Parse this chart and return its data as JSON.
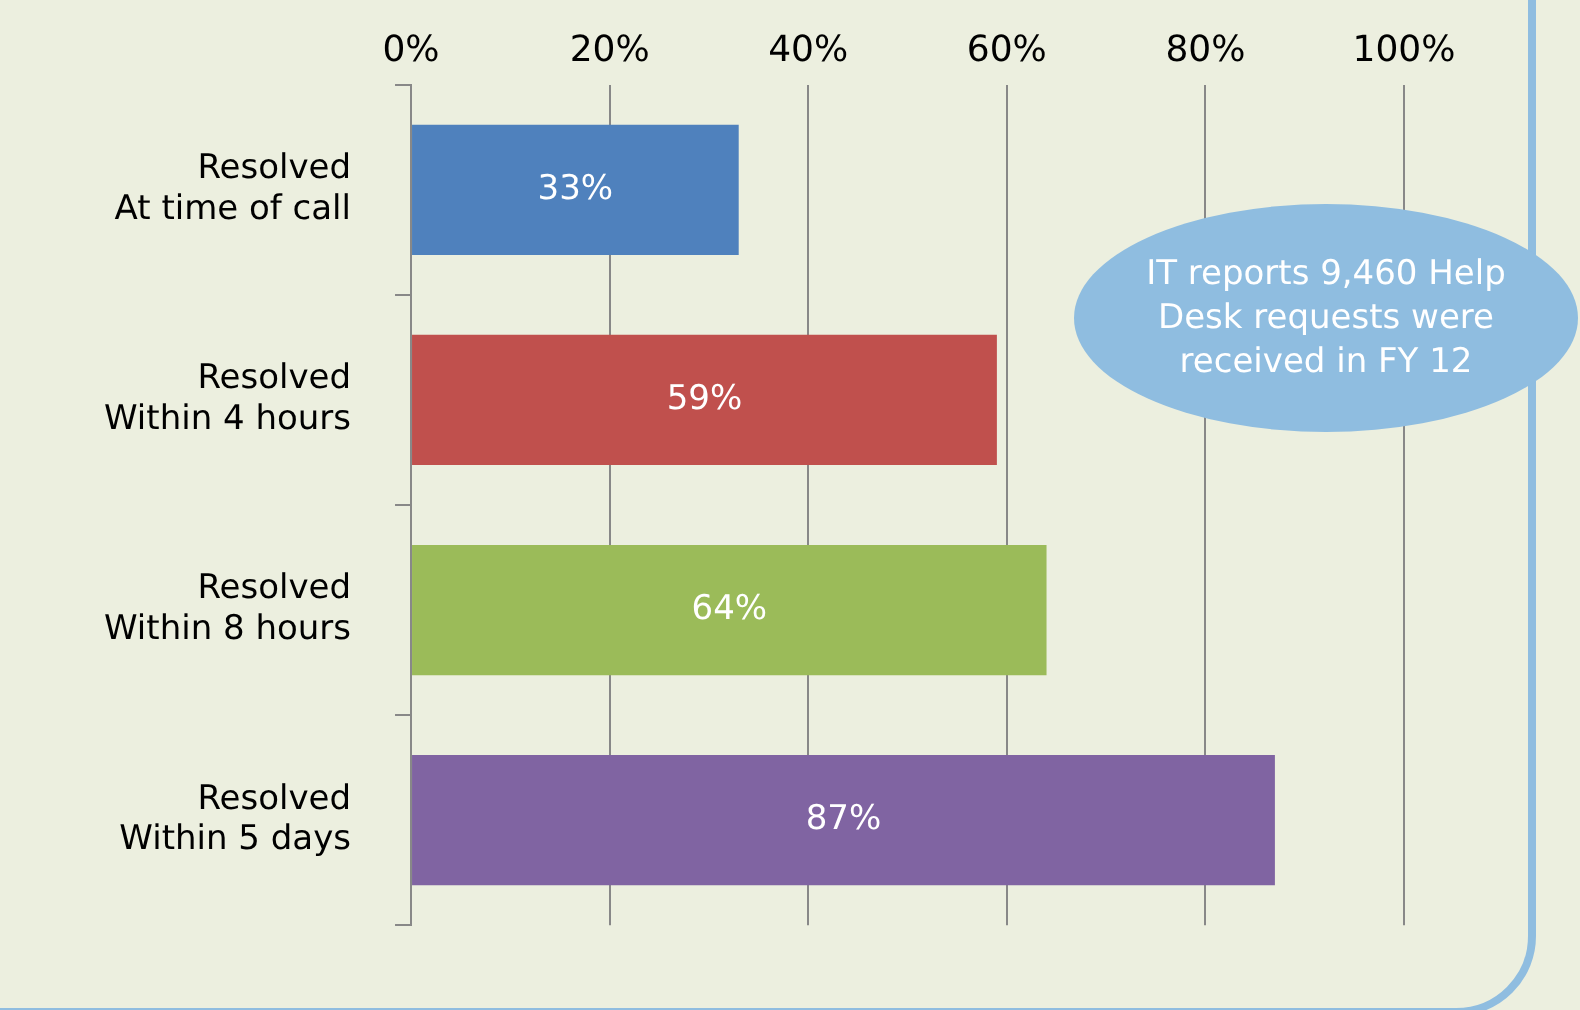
{
  "chart_data": {
    "type": "bar",
    "orientation": "horizontal",
    "categories": [
      "Resolved\nAt time of call",
      "Resolved\nWithin 4 hours",
      "Resolved\nWithin 8 hours",
      "Resolved\nWithin 5 days"
    ],
    "values": [
      33,
      59,
      64,
      87
    ],
    "colors": [
      "#4f81bd",
      "#c0504d",
      "#9bbb59",
      "#8064a2"
    ],
    "value_labels": [
      "33%",
      "59%",
      "64%",
      "87%"
    ],
    "xlim": [
      0,
      100
    ],
    "xticks": [
      {
        "value": 0,
        "label": "0%"
      },
      {
        "value": 20,
        "label": "20%"
      },
      {
        "value": 40,
        "label": "40%"
      },
      {
        "value": 60,
        "label": "60%"
      },
      {
        "value": 80,
        "label": "80%"
      },
      {
        "value": 100,
        "label": "100%"
      }
    ],
    "grid": "x",
    "legend": false,
    "annotations": [
      "IT reports 9,460 Help Desk requests were received in FY 12"
    ]
  }
}
